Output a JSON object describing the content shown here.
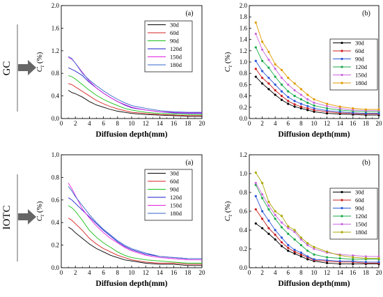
{
  "rows": [
    {
      "label": "GC"
    },
    {
      "label": "IOTC"
    }
  ],
  "colors": {
    "30d": "#000000",
    "60d": "#d42020",
    "90d": "#18c018",
    "120d": "#1a1ac8",
    "150d": "#e020e0",
    "180d": "#3366cc",
    "60d_b": "#c81c1c",
    "90d_b": "#2855d8",
    "120d_b": "#18a84a",
    "150d_b": "#cc66dd",
    "180d_b": "#e09a00",
    "arrow": "#666666"
  },
  "chart_data": [
    {
      "type": "line",
      "panel_tag": "(a)",
      "xlabel": "Diffusion depth(mm)",
      "ylabel_main": "C",
      "ylabel_sub": "t",
      "ylabel_unit": " (%)",
      "xlim": [
        0,
        20
      ],
      "ylim": [
        0,
        2.0
      ],
      "xticks": [
        "0",
        "2",
        "4",
        "6",
        "8",
        "10",
        "12",
        "14",
        "16",
        "18",
        "20"
      ],
      "yticks": [
        "0.0",
        "0.4",
        "0.8",
        "1.2",
        "1.6",
        "2.0"
      ],
      "marker": "none",
      "legend_position": "top-right",
      "x": [
        1,
        1.5,
        2,
        3,
        4,
        5,
        6,
        7,
        8,
        9,
        10,
        12,
        14,
        16,
        18,
        20
      ],
      "series": [
        {
          "name": "30d",
          "color": "#000000",
          "values": [
            0.5,
            0.46,
            0.44,
            0.38,
            0.3,
            0.24,
            0.2,
            0.16,
            0.13,
            0.11,
            0.09,
            0.07,
            0.06,
            0.05,
            0.04,
            0.04
          ]
        },
        {
          "name": "60d",
          "color": "#d42020",
          "values": [
            0.62,
            0.6,
            0.56,
            0.48,
            0.4,
            0.32,
            0.26,
            0.21,
            0.17,
            0.14,
            0.11,
            0.09,
            0.07,
            0.06,
            0.05,
            0.05
          ]
        },
        {
          "name": "90d",
          "color": "#18c018",
          "values": [
            0.76,
            0.74,
            0.7,
            0.6,
            0.5,
            0.41,
            0.34,
            0.28,
            0.23,
            0.18,
            0.15,
            0.11,
            0.09,
            0.08,
            0.07,
            0.07
          ]
        },
        {
          "name": "120d",
          "color": "#1a1ac8",
          "values": [
            0.9,
            0.87,
            0.84,
            0.76,
            0.64,
            0.54,
            0.45,
            0.37,
            0.3,
            0.24,
            0.19,
            0.15,
            0.12,
            0.1,
            0.09,
            0.09
          ]
        },
        {
          "name": "150d",
          "color": "#e020e0",
          "values": [
            1.08,
            1.05,
            0.98,
            0.82,
            0.66,
            0.54,
            0.45,
            0.37,
            0.3,
            0.25,
            0.2,
            0.15,
            0.12,
            0.11,
            0.1,
            0.1
          ]
        },
        {
          "name": "180d",
          "color": "#3366cc",
          "values": [
            1.1,
            1.06,
            0.98,
            0.8,
            0.68,
            0.58,
            0.49,
            0.41,
            0.34,
            0.28,
            0.23,
            0.18,
            0.14,
            0.12,
            0.11,
            0.11
          ]
        }
      ]
    },
    {
      "type": "line",
      "panel_tag": "(b)",
      "xlabel": "Diffusion depth(mm)",
      "ylabel_main": "C",
      "ylabel_sub": "t",
      "ylabel_unit": " (%)",
      "xlim": [
        0,
        20
      ],
      "ylim": [
        0,
        2.0
      ],
      "xticks": [
        "0",
        "2",
        "4",
        "6",
        "8",
        "10",
        "12",
        "14",
        "16",
        "18",
        "20"
      ],
      "yticks": [
        "0.0",
        "0.2",
        "0.4",
        "0.6",
        "0.8",
        "1.0",
        "1.2",
        "1.4",
        "1.6",
        "1.8",
        "2.0"
      ],
      "marker": "circle",
      "legend_position": "center-right",
      "x": [
        1,
        2,
        3,
        4,
        5,
        6,
        7,
        8,
        9,
        10,
        12,
        14,
        16,
        18,
        20
      ],
      "series": [
        {
          "name": "30d",
          "color": "#000000",
          "values": [
            0.74,
            0.62,
            0.52,
            0.42,
            0.33,
            0.26,
            0.21,
            0.18,
            0.15,
            0.12,
            0.09,
            0.08,
            0.07,
            0.06,
            0.06
          ]
        },
        {
          "name": "60d",
          "color": "#c81c1c",
          "values": [
            0.88,
            0.72,
            0.62,
            0.5,
            0.4,
            0.31,
            0.25,
            0.21,
            0.18,
            0.15,
            0.12,
            0.1,
            0.09,
            0.08,
            0.08
          ]
        },
        {
          "name": "90d",
          "color": "#2855d8",
          "values": [
            1.02,
            0.84,
            0.72,
            0.6,
            0.48,
            0.38,
            0.31,
            0.26,
            0.22,
            0.18,
            0.14,
            0.12,
            0.1,
            0.09,
            0.09
          ]
        },
        {
          "name": "120d",
          "color": "#18a84a",
          "values": [
            1.26,
            1.02,
            0.9,
            0.74,
            0.6,
            0.48,
            0.4,
            0.34,
            0.28,
            0.23,
            0.18,
            0.15,
            0.13,
            0.12,
            0.12
          ]
        },
        {
          "name": "150d",
          "color": "#cc66dd",
          "values": [
            1.5,
            1.22,
            1.04,
            0.88,
            0.72,
            0.6,
            0.5,
            0.42,
            0.34,
            0.28,
            0.22,
            0.18,
            0.15,
            0.14,
            0.14
          ]
        },
        {
          "name": "180d",
          "color": "#e09a00",
          "values": [
            1.7,
            1.36,
            1.18,
            0.96,
            0.86,
            0.72,
            0.62,
            0.52,
            0.42,
            0.34,
            0.26,
            0.21,
            0.18,
            0.16,
            0.16
          ]
        }
      ]
    },
    {
      "type": "line",
      "panel_tag": "(a)",
      "xlabel": "Diffusion depth(mm)",
      "ylabel_main": "C",
      "ylabel_sub": "t",
      "ylabel_unit": " (%)",
      "xlim": [
        0,
        20
      ],
      "ylim": [
        0,
        1.0
      ],
      "xticks": [
        "0",
        "2",
        "4",
        "6",
        "8",
        "10",
        "12",
        "14",
        "16",
        "18",
        "20"
      ],
      "yticks": [
        "0.0",
        "0.2",
        "0.4",
        "0.6",
        "0.8",
        "1.0"
      ],
      "marker": "none",
      "legend_position": "top-right",
      "x": [
        1,
        1.5,
        2,
        3,
        4,
        5,
        6,
        7,
        8,
        9,
        10,
        12,
        14,
        16,
        18,
        20
      ],
      "series": [
        {
          "name": "30d",
          "color": "#000000",
          "values": [
            0.36,
            0.34,
            0.31,
            0.26,
            0.21,
            0.17,
            0.14,
            0.11,
            0.09,
            0.07,
            0.06,
            0.04,
            0.03,
            0.03,
            0.02,
            0.02
          ]
        },
        {
          "name": "60d",
          "color": "#d42020",
          "values": [
            0.44,
            0.42,
            0.39,
            0.33,
            0.26,
            0.21,
            0.17,
            0.14,
            0.11,
            0.09,
            0.07,
            0.05,
            0.04,
            0.04,
            0.03,
            0.03
          ]
        },
        {
          "name": "90d",
          "color": "#18c018",
          "values": [
            0.55,
            0.53,
            0.5,
            0.42,
            0.33,
            0.27,
            0.22,
            0.18,
            0.14,
            0.11,
            0.09,
            0.07,
            0.06,
            0.05,
            0.04,
            0.04
          ]
        },
        {
          "name": "120d",
          "color": "#1a1ac8",
          "values": [
            0.62,
            0.6,
            0.57,
            0.51,
            0.45,
            0.39,
            0.33,
            0.28,
            0.23,
            0.19,
            0.16,
            0.12,
            0.1,
            0.09,
            0.08,
            0.08
          ]
        },
        {
          "name": "150d",
          "color": "#e020e0",
          "values": [
            0.75,
            0.7,
            0.64,
            0.52,
            0.44,
            0.37,
            0.31,
            0.26,
            0.22,
            0.18,
            0.15,
            0.11,
            0.09,
            0.08,
            0.07,
            0.07
          ]
        },
        {
          "name": "180d",
          "color": "#3366cc",
          "values": [
            0.72,
            0.68,
            0.63,
            0.55,
            0.47,
            0.4,
            0.34,
            0.29,
            0.24,
            0.2,
            0.17,
            0.13,
            0.1,
            0.09,
            0.08,
            0.08
          ]
        }
      ]
    },
    {
      "type": "line",
      "panel_tag": "(b)",
      "xlabel": "Diffusion depth(mm)",
      "ylabel_main": "C",
      "ylabel_sub": "t",
      "ylabel_unit": " (%)",
      "xlim": [
        0,
        20
      ],
      "ylim": [
        0,
        1.2
      ],
      "xticks": [
        "0",
        "2",
        "4",
        "6",
        "8",
        "10",
        "12",
        "14",
        "16",
        "18",
        "20"
      ],
      "yticks": [
        "0.0",
        "0.2",
        "0.4",
        "0.6",
        "0.8",
        "1.0",
        "1.2"
      ],
      "marker": "circle",
      "legend_position": "center-right",
      "x": [
        1,
        2,
        3,
        4,
        5,
        6,
        7,
        8,
        9,
        10,
        12,
        14,
        16,
        18,
        20
      ],
      "series": [
        {
          "name": "30d",
          "color": "#000000",
          "values": [
            0.47,
            0.42,
            0.36,
            0.3,
            0.23,
            0.18,
            0.15,
            0.12,
            0.09,
            0.07,
            0.05,
            0.04,
            0.04,
            0.04,
            0.04
          ]
        },
        {
          "name": "60d",
          "color": "#c81c1c",
          "values": [
            0.62,
            0.52,
            0.42,
            0.35,
            0.27,
            0.21,
            0.17,
            0.14,
            0.11,
            0.08,
            0.07,
            0.06,
            0.06,
            0.05,
            0.05
          ]
        },
        {
          "name": "90d",
          "color": "#2855d8",
          "values": [
            0.76,
            0.6,
            0.5,
            0.4,
            0.32,
            0.24,
            0.19,
            0.16,
            0.12,
            0.09,
            0.08,
            0.07,
            0.07,
            0.06,
            0.06
          ]
        },
        {
          "name": "120d",
          "color": "#18a84a",
          "values": [
            0.88,
            0.74,
            0.62,
            0.52,
            0.43,
            0.36,
            0.3,
            0.24,
            0.18,
            0.14,
            0.11,
            0.1,
            0.09,
            0.09,
            0.09
          ]
        },
        {
          "name": "150d",
          "color": "#cc66dd",
          "values": [
            0.9,
            0.78,
            0.66,
            0.56,
            0.48,
            0.42,
            0.38,
            0.3,
            0.24,
            0.2,
            0.16,
            0.14,
            0.13,
            0.12,
            0.12
          ]
        },
        {
          "name": "180d",
          "color": "#a8a800",
          "values": [
            1.01,
            0.9,
            0.7,
            0.6,
            0.55,
            0.44,
            0.4,
            0.32,
            0.26,
            0.22,
            0.17,
            0.13,
            0.11,
            0.1,
            0.1
          ]
        }
      ]
    }
  ]
}
